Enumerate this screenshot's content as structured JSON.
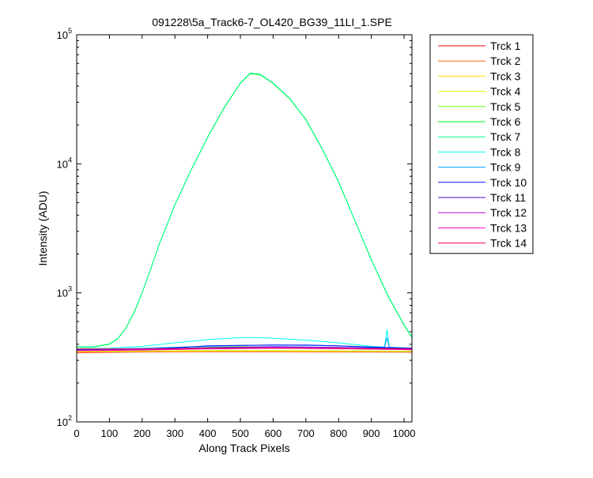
{
  "chart_data": {
    "type": "line",
    "title": "091228\\5a_Track6-7_OL420_BG39_11LI_1.SPE",
    "xlabel": "Along Track Pixels",
    "ylabel": "Intensity (ADU)",
    "xlim": [
      0,
      1024
    ],
    "ylim": [
      100,
      100000
    ],
    "yscale": "log",
    "grid": false,
    "legend_position": "outside-right",
    "x_ticks": [
      0,
      100,
      200,
      300,
      400,
      500,
      600,
      700,
      800,
      900,
      1000
    ],
    "y_ticks": [
      {
        "value": 100,
        "base": "10",
        "exp": "2"
      },
      {
        "value": 1000,
        "base": "10",
        "exp": "3"
      },
      {
        "value": 10000,
        "base": "10",
        "exp": "4"
      },
      {
        "value": 100000,
        "base": "10",
        "exp": "5"
      }
    ],
    "series": [
      {
        "name": "Trck 1",
        "color": "#ff0000",
        "x": [
          0,
          200,
          400,
          600,
          800,
          1024
        ],
        "y": [
          345,
          348,
          350,
          350,
          348,
          347
        ]
      },
      {
        "name": "Trck 2",
        "color": "#ff6f00",
        "x": [
          0,
          200,
          400,
          600,
          800,
          1024
        ],
        "y": [
          348,
          350,
          352,
          352,
          350,
          349
        ]
      },
      {
        "name": "Trck 3",
        "color": "#ffdc00",
        "x": [
          0,
          200,
          400,
          600,
          800,
          1024
        ],
        "y": [
          350,
          352,
          354,
          354,
          352,
          351
        ]
      },
      {
        "name": "Trck 4",
        "color": "#d4ff00",
        "x": [
          0,
          200,
          400,
          600,
          800,
          1024
        ],
        "y": [
          352,
          354,
          357,
          357,
          355,
          353
        ]
      },
      {
        "name": "Trck 5",
        "color": "#66ff00",
        "x": [
          0,
          100,
          200,
          300,
          400,
          500,
          600,
          700,
          800,
          900,
          1024
        ],
        "y": [
          365,
          363,
          365,
          370,
          378,
          382,
          380,
          375,
          370,
          366,
          362
        ]
      },
      {
        "name": "Trck 6",
        "color": "#00ff1e",
        "x": [
          0,
          50,
          100,
          125,
          150,
          175,
          200,
          225,
          250,
          300,
          350,
          400,
          450,
          500,
          530,
          560,
          600,
          650,
          700,
          750,
          800,
          850,
          900,
          950,
          1000,
          1024
        ],
        "y": [
          380,
          380,
          400,
          440,
          530,
          700,
          1000,
          1500,
          2300,
          4800,
          9000,
          16000,
          27000,
          42000,
          50000,
          49000,
          42000,
          32000,
          22000,
          13000,
          7200,
          3600,
          1800,
          950,
          560,
          450
        ]
      },
      {
        "name": "Trck 7",
        "color": "#00ff8c",
        "x": [
          0,
          50,
          100,
          125,
          150,
          175,
          200,
          225,
          250,
          300,
          350,
          400,
          450,
          500,
          530,
          560,
          600,
          650,
          700,
          750,
          800,
          850,
          900,
          950,
          1000,
          1024
        ],
        "y": [
          382,
          382,
          402,
          442,
          532,
          705,
          1005,
          1505,
          2310,
          4820,
          9050,
          16100,
          27200,
          42300,
          50500,
          49500,
          42400,
          32300,
          22200,
          13100,
          7250,
          3620,
          1810,
          960,
          565,
          455
        ]
      },
      {
        "name": "Trck 8",
        "color": "#00fff0",
        "x": [
          0,
          100,
          200,
          300,
          400,
          500,
          550,
          600,
          700,
          800,
          900,
          940,
          948,
          955,
          1000,
          1024
        ],
        "y": [
          370,
          372,
          385,
          410,
          435,
          450,
          450,
          445,
          430,
          410,
          385,
          380,
          520,
          380,
          375,
          372
        ]
      },
      {
        "name": "Trck 9",
        "color": "#00a0ff",
        "x": [
          0,
          200,
          400,
          600,
          800,
          900,
          940,
          948,
          955,
          1024
        ],
        "y": [
          365,
          372,
          385,
          395,
          388,
          378,
          376,
          450,
          376,
          370
        ]
      },
      {
        "name": "Trck 10",
        "color": "#0010ff",
        "x": [
          0,
          100,
          200,
          300,
          400,
          500,
          600,
          700,
          800,
          900,
          1024
        ],
        "y": [
          362,
          362,
          366,
          375,
          388,
          392,
          394,
          394,
          388,
          380,
          372
        ]
      },
      {
        "name": "Trck 11",
        "color": "#5a00c8",
        "x": [
          0,
          200,
          400,
          600,
          800,
          1024
        ],
        "y": [
          360,
          364,
          376,
          382,
          378,
          368
        ]
      },
      {
        "name": "Trck 12",
        "color": "#c000e0",
        "x": [
          0,
          200,
          400,
          600,
          800,
          1024
        ],
        "y": [
          358,
          362,
          372,
          378,
          375,
          365
        ]
      },
      {
        "name": "Trck 13",
        "color": "#ff00c8",
        "x": [
          0,
          200,
          400,
          600,
          800,
          1024
        ],
        "y": [
          356,
          360,
          368,
          372,
          370,
          362
        ]
      },
      {
        "name": "Trck 14",
        "color": "#ff0050",
        "x": [
          0,
          200,
          400,
          600,
          800,
          1024
        ],
        "y": [
          368,
          368,
          370,
          372,
          370,
          368
        ]
      }
    ]
  }
}
